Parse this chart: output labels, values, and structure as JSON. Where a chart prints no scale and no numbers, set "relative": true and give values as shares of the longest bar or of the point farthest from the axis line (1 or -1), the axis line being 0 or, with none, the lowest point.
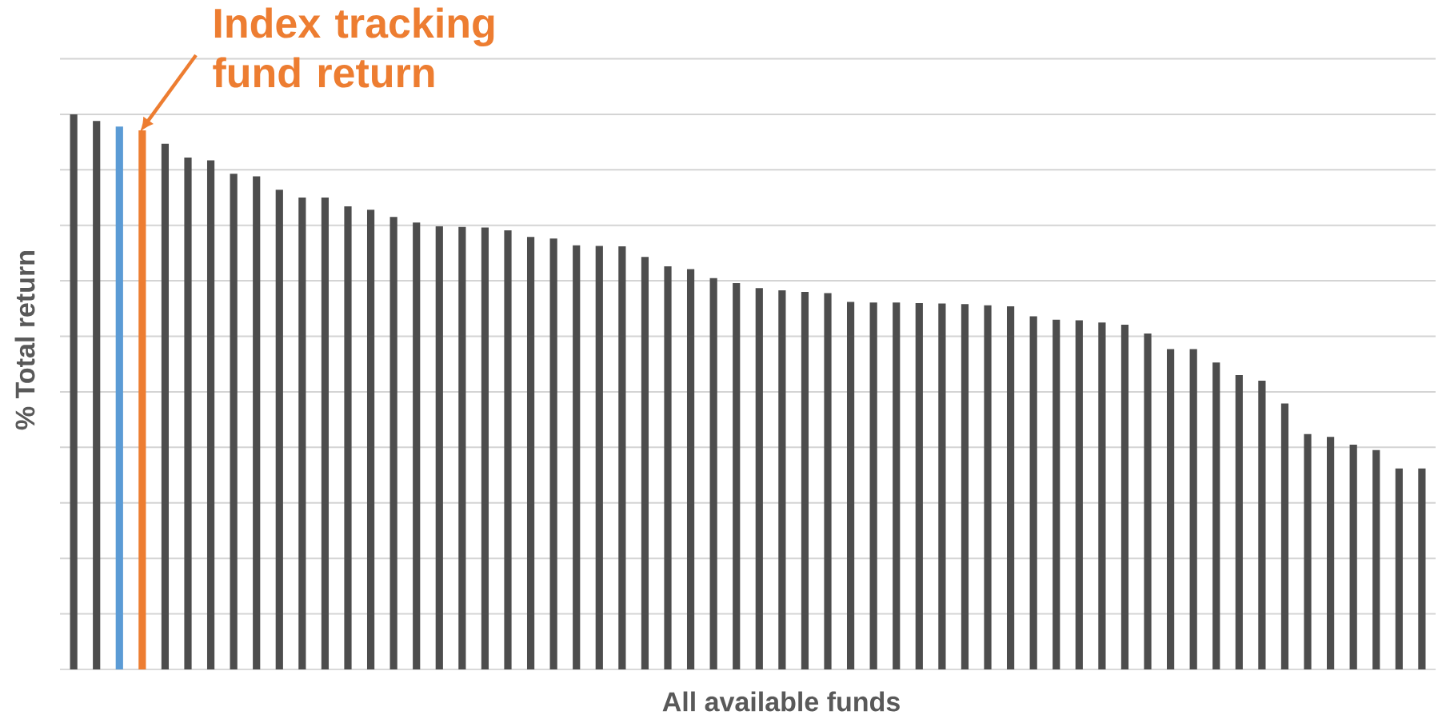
{
  "chart_data": {
    "type": "bar",
    "relative": true,
    "xlabel": "All available funds",
    "ylabel": "% Total return",
    "grid": "y",
    "categories": [
      null,
      null,
      null,
      null,
      null,
      null,
      null,
      null,
      null,
      null,
      null,
      null,
      null,
      null,
      null,
      null,
      null,
      null,
      null,
      null,
      null,
      null,
      null,
      null,
      null,
      null,
      null,
      null,
      null,
      null,
      null,
      null,
      null,
      null,
      null,
      null,
      null,
      null,
      null,
      null,
      null,
      null,
      null,
      null,
      null,
      null,
      null,
      null,
      null,
      null,
      null,
      null,
      null,
      null,
      null,
      null,
      null,
      null,
      null,
      null
    ],
    "values": [
      1,
      0.988,
      0.978,
      0.971,
      0.947,
      0.922,
      0.917,
      0.893,
      0.888,
      0.864,
      0.85,
      0.85,
      0.834,
      0.828,
      0.815,
      0.805,
      0.798,
      0.797,
      0.796,
      0.791,
      0.779,
      0.776,
      0.764,
      0.763,
      0.762,
      0.743,
      0.726,
      0.721,
      0.705,
      0.696,
      0.687,
      0.683,
      0.68,
      0.678,
      0.662,
      0.661,
      0.661,
      0.66,
      0.659,
      0.658,
      0.656,
      0.654,
      0.636,
      0.63,
      0.629,
      0.625,
      0.621,
      0.605,
      0.577,
      0.577,
      0.553,
      0.53,
      0.52,
      0.479,
      0.424,
      0.419,
      0.405,
      0.395,
      0.362,
      0.362
    ],
    "colors": [
      "#4d4d4d",
      "#4d4d4d",
      "#5b9bd5",
      "#ed7d31",
      "#4d4d4d",
      "#4d4d4d",
      "#4d4d4d",
      "#4d4d4d",
      "#4d4d4d",
      "#4d4d4d",
      "#4d4d4d",
      "#4d4d4d",
      "#4d4d4d",
      "#4d4d4d",
      "#4d4d4d",
      "#4d4d4d",
      "#4d4d4d",
      "#4d4d4d",
      "#4d4d4d",
      "#4d4d4d",
      "#4d4d4d",
      "#4d4d4d",
      "#4d4d4d",
      "#4d4d4d",
      "#4d4d4d",
      "#4d4d4d",
      "#4d4d4d",
      "#4d4d4d",
      "#4d4d4d",
      "#4d4d4d",
      "#4d4d4d",
      "#4d4d4d",
      "#4d4d4d",
      "#4d4d4d",
      "#4d4d4d",
      "#4d4d4d",
      "#4d4d4d",
      "#4d4d4d",
      "#4d4d4d",
      "#4d4d4d",
      "#4d4d4d",
      "#4d4d4d",
      "#4d4d4d",
      "#4d4d4d",
      "#4d4d4d",
      "#4d4d4d",
      "#4d4d4d",
      "#4d4d4d",
      "#4d4d4d",
      "#4d4d4d",
      "#4d4d4d",
      "#4d4d4d",
      "#4d4d4d",
      "#4d4d4d",
      "#4d4d4d",
      "#4d4d4d",
      "#4d4d4d",
      "#4d4d4d",
      "#4d4d4d",
      "#4d4d4d"
    ],
    "annotations": [
      "Index tracking fund return"
    ]
  }
}
